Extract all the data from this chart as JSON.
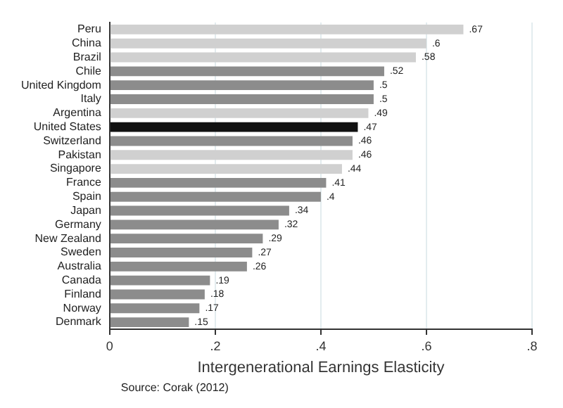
{
  "chart_data": {
    "type": "bar",
    "orientation": "horizontal",
    "xlabel": "Intergenerational Earnings Elasticity",
    "categories": [
      "Peru",
      "China",
      "Brazil",
      "Chile",
      "United Kingdom",
      "Italy",
      "Argentina",
      "United States",
      "Switzerland",
      "Pakistan",
      "Singapore",
      "France",
      "Spain",
      "Japan",
      "Germany",
      "New Zealand",
      "Sweden",
      "Australia",
      "Canada",
      "Finland",
      "Norway",
      "Denmark"
    ],
    "values": [
      0.67,
      0.6,
      0.58,
      0.52,
      0.5,
      0.5,
      0.49,
      0.47,
      0.46,
      0.46,
      0.44,
      0.41,
      0.4,
      0.34,
      0.32,
      0.29,
      0.27,
      0.26,
      0.19,
      0.18,
      0.17,
      0.15
    ],
    "value_labels": [
      ".67",
      ".6",
      ".58",
      ".52",
      ".5",
      ".5",
      ".49",
      ".47",
      ".46",
      ".46",
      ".44",
      ".41",
      ".4",
      ".34",
      ".32",
      ".29",
      ".27",
      ".26",
      ".19",
      ".18",
      ".17",
      ".15"
    ],
    "colors": [
      "#d0d0d0",
      "#d0d0d0",
      "#d0d0d0",
      "#8c8c8c",
      "#8c8c8c",
      "#8c8c8c",
      "#d0d0d0",
      "#111111",
      "#8c8c8c",
      "#d0d0d0",
      "#d0d0d0",
      "#8c8c8c",
      "#8c8c8c",
      "#8c8c8c",
      "#8c8c8c",
      "#8c8c8c",
      "#8c8c8c",
      "#8c8c8c",
      "#8c8c8c",
      "#8c8c8c",
      "#8c8c8c",
      "#8c8c8c"
    ],
    "xlim": [
      0,
      0.8
    ],
    "xticks": [
      0,
      {
        "value": 0.2,
        "label": ".2"
      },
      {
        "value": 0.4,
        "label": ".4"
      },
      {
        "value": 0.6,
        "label": ".6"
      },
      {
        "value": 0.8,
        "label": ".8"
      }
    ],
    "grid": "x",
    "legend": false,
    "annotations": [
      "Source: Corak (2012)"
    ]
  }
}
